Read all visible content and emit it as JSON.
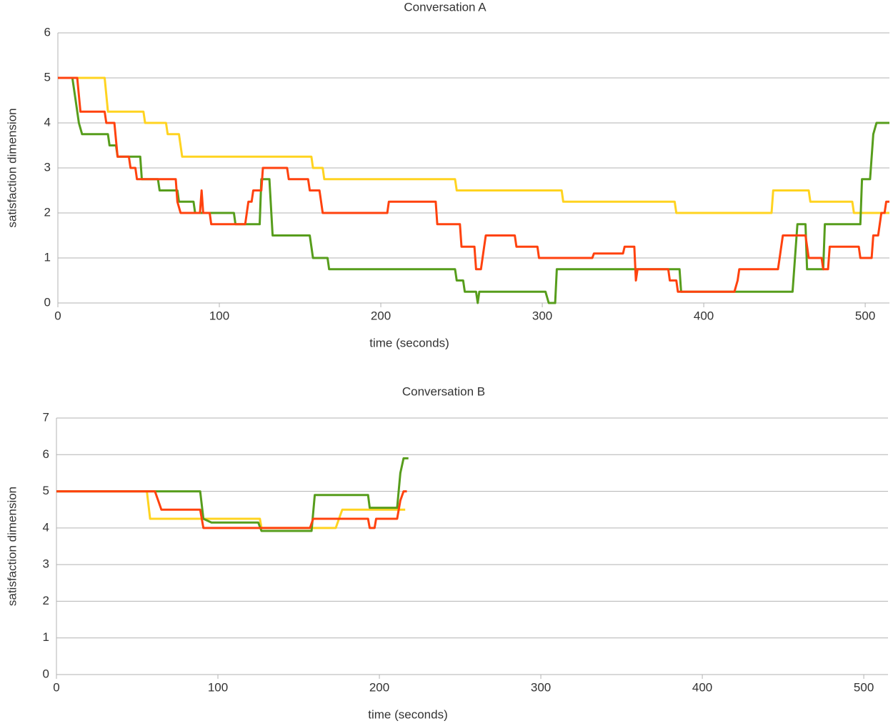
{
  "chart_data": [
    {
      "type": "line",
      "title": "Conversation A",
      "x_label": "time (seconds)",
      "y_label": "satisfaction dimension",
      "xlim": [
        0,
        515
      ],
      "xticks": [
        0,
        100,
        200,
        300,
        400,
        500
      ],
      "ylim": [
        0,
        6
      ],
      "yticks": [
        0,
        1,
        2,
        3,
        4,
        5,
        6
      ],
      "grid": true,
      "series": [
        {
          "color": "#ffd320",
          "x": [
            0,
            29,
            31,
            53,
            54,
            67,
            68,
            75,
            77,
            157,
            158,
            164,
            165,
            246,
            247,
            312,
            313,
            382,
            383,
            442,
            443,
            465,
            466,
            492,
            493,
            515
          ],
          "values": [
            5,
            5,
            4.25,
            4.25,
            4,
            4,
            3.75,
            3.75,
            3.25,
            3.25,
            3,
            3,
            2.75,
            2.75,
            2.5,
            2.5,
            2.25,
            2.25,
            2,
            2,
            2.5,
            2.5,
            2.25,
            2.25,
            2,
            2
          ]
        },
        {
          "color": "#579d1c",
          "x": [
            0,
            9,
            11,
            13,
            15,
            31,
            32,
            36,
            37,
            51,
            52,
            62,
            63,
            74,
            75,
            84,
            85,
            109,
            110,
            125,
            126,
            131,
            133,
            156,
            158,
            167,
            168,
            246,
            247,
            251,
            252,
            259,
            260,
            261,
            302,
            304,
            308,
            309,
            385,
            386,
            455,
            458,
            463,
            464,
            474,
            475,
            497,
            498,
            503,
            505,
            507,
            515
          ],
          "values": [
            5,
            5,
            4.5,
            4,
            3.75,
            3.75,
            3.5,
            3.5,
            3.25,
            3.25,
            2.75,
            2.75,
            2.5,
            2.5,
            2.25,
            2.25,
            2,
            2,
            1.75,
            1.75,
            2.75,
            2.75,
            1.5,
            1.5,
            1,
            1,
            0.75,
            0.75,
            0.5,
            0.5,
            0.25,
            0.25,
            0,
            0.25,
            0.25,
            0,
            0,
            0.75,
            0.75,
            0.25,
            0.25,
            1.75,
            1.75,
            0.75,
            0.75,
            1.75,
            1.75,
            2.75,
            2.75,
            3.75,
            4,
            4
          ]
        },
        {
          "color": "#ff420e",
          "x": [
            0,
            12,
            14,
            29,
            30,
            35,
            37,
            44,
            45,
            48,
            49,
            73,
            74,
            76,
            88,
            89,
            90,
            94,
            95,
            116,
            118,
            120,
            121,
            126,
            127,
            142,
            143,
            155,
            156,
            162,
            164,
            204,
            205,
            234,
            235,
            249,
            250,
            258,
            259,
            262,
            264,
            265,
            283,
            284,
            297,
            298,
            331,
            332,
            350,
            351,
            357,
            358,
            359,
            378,
            379,
            383,
            384,
            419,
            421,
            422,
            446,
            447,
            449,
            463,
            465,
            473,
            474,
            477,
            478,
            496,
            497,
            504,
            505,
            508,
            510,
            512,
            513,
            515
          ],
          "values": [
            5,
            5,
            4.25,
            4.25,
            4,
            4,
            3.25,
            3.25,
            3,
            3,
            2.75,
            2.75,
            2.25,
            2,
            2,
            2.5,
            2,
            2,
            1.75,
            1.75,
            2.25,
            2.25,
            2.5,
            2.5,
            3,
            3,
            2.75,
            2.75,
            2.5,
            2.5,
            2,
            2,
            2.25,
            2.25,
            1.75,
            1.75,
            1.25,
            1.25,
            0.75,
            0.75,
            1.25,
            1.5,
            1.5,
            1.25,
            1.25,
            1,
            1,
            1.1,
            1.1,
            1.25,
            1.25,
            0.5,
            0.75,
            0.75,
            0.5,
            0.5,
            0.25,
            0.25,
            0.5,
            0.75,
            0.75,
            1,
            1.5,
            1.5,
            1,
            1,
            0.75,
            0.75,
            1.25,
            1.25,
            1,
            1,
            1.5,
            1.5,
            2,
            2,
            2.25,
            2.25
          ]
        }
      ]
    },
    {
      "type": "line",
      "title": "Conversation B",
      "x_label": "time (seconds)",
      "y_label": "satisfaction dimension",
      "xlim": [
        0,
        515
      ],
      "xticks": [
        0,
        100,
        200,
        300,
        400,
        500
      ],
      "ylim": [
        0,
        7
      ],
      "yticks": [
        0,
        1,
        2,
        3,
        4,
        5,
        6,
        7
      ],
      "grid": true,
      "series": [
        {
          "color": "#ffd320",
          "x": [
            0,
            56,
            58,
            126,
            127,
            173,
            175,
            177,
            216
          ],
          "values": [
            5,
            5,
            4.25,
            4.25,
            4,
            4,
            4.25,
            4.5,
            4.5
          ]
        },
        {
          "color": "#579d1c",
          "x": [
            0,
            89,
            91,
            96,
            125,
            127,
            158,
            160,
            193,
            194,
            211,
            213,
            215,
            218
          ],
          "values": [
            5,
            5,
            4.25,
            4.15,
            4.15,
            3.92,
            3.92,
            4.9,
            4.9,
            4.55,
            4.55,
            5.5,
            5.9,
            5.9
          ]
        },
        {
          "color": "#ff420e",
          "x": [
            0,
            61,
            63,
            65,
            89,
            91,
            157,
            159,
            193,
            194,
            197,
            198,
            211,
            213,
            215,
            217
          ],
          "values": [
            5,
            5,
            4.75,
            4.5,
            4.5,
            4,
            4,
            4.25,
            4.25,
            4,
            4,
            4.25,
            4.25,
            4.75,
            5,
            5
          ]
        }
      ]
    }
  ]
}
